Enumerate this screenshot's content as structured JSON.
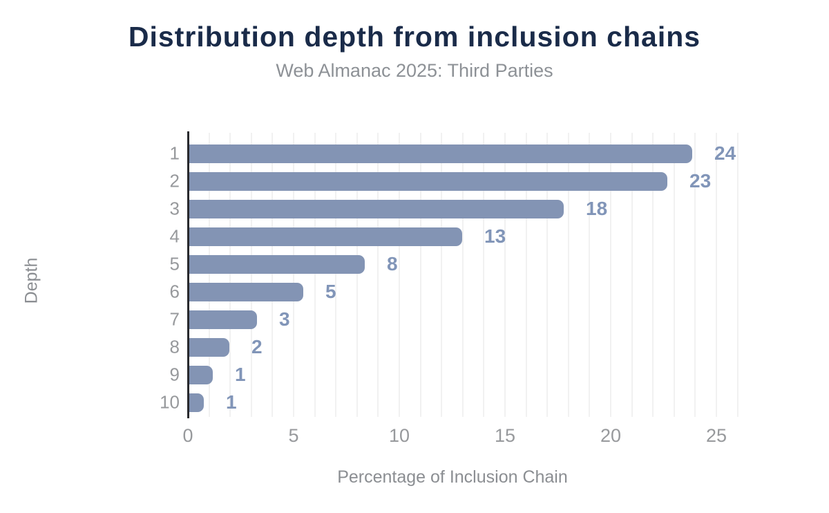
{
  "page": {
    "title": "Distribution depth from inclusion chains",
    "subtitle": "Web Almanac 2025: Third Parties"
  },
  "chart_data": {
    "type": "bar",
    "orientation": "horizontal",
    "title": "Distribution depth from inclusion chains",
    "subtitle": "Web Almanac 2025: Third Parties",
    "xlabel": "Percentage of Inclusion Chain",
    "ylabel": "Depth",
    "categories": [
      "1",
      "2",
      "3",
      "4",
      "5",
      "6",
      "7",
      "8",
      "9",
      "10"
    ],
    "values": [
      23.8,
      22.6,
      17.7,
      12.9,
      8.3,
      5.4,
      3.2,
      1.9,
      1.1,
      0.7
    ],
    "value_labels": [
      "24",
      "23",
      "18",
      "13",
      "8",
      "5",
      "3",
      "2",
      "1",
      "1"
    ],
    "x_ticks": [
      0,
      5,
      10,
      15,
      20,
      25
    ],
    "xlim": [
      0,
      26
    ],
    "grid": {
      "vertical_every": 1,
      "horizontal": false
    },
    "legend": "none",
    "bar_style": "rounded-right-corners",
    "colors": {
      "bar": "#8394b4",
      "value_label": "#8195b8",
      "title": "#1a2b49",
      "subtitle": "#8d9196",
      "tick_label": "#97999c",
      "axis_title": "#8b8e92",
      "axis_line": "#28292d",
      "gridline": "#f1f1f1",
      "background": "#ffffff"
    }
  }
}
